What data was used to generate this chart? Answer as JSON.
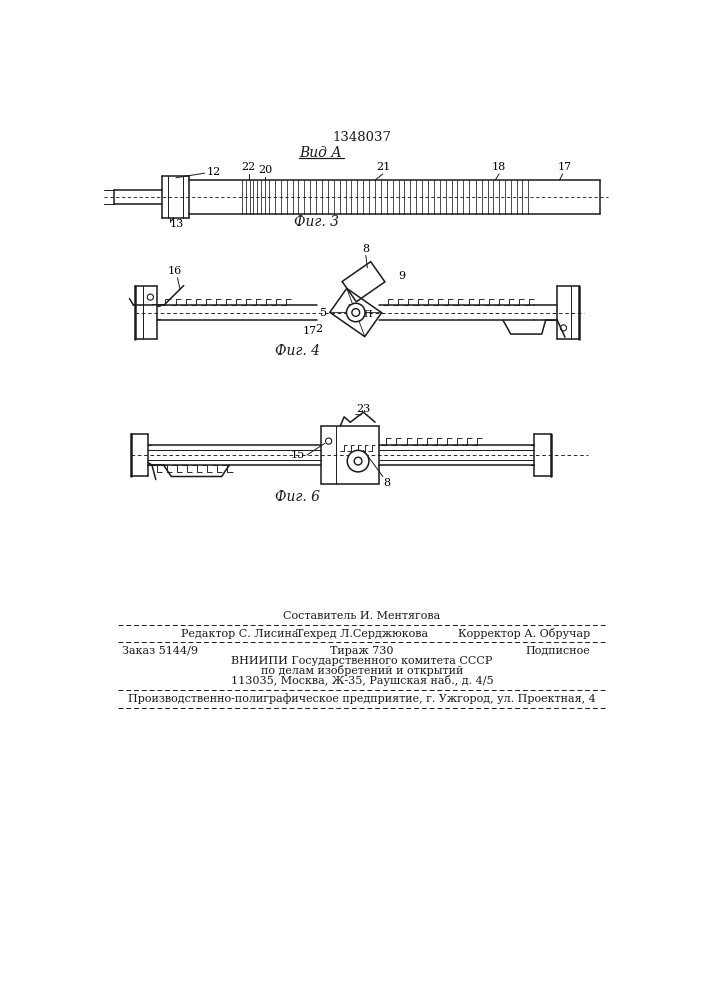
{
  "title_patent": "1348037",
  "view_label": "Вид А",
  "fig3_label": "Фиг. 3",
  "fig4_label": "Фиг. 4",
  "fig6_label": "Фиг. 6",
  "bg_color": "#ffffff",
  "line_color": "#1a1a1a",
  "footer_sestavitel": "Составитель И. Ментягова",
  "footer_redaktor": "Редактор С. Лисина",
  "footer_tehred": "Техред Л.Серджюкова",
  "footer_korrektor": "Корректор А. Обручар",
  "footer_zakaz": "Заказ 5144/9",
  "footer_tirazh": "Тираж 730",
  "footer_podpisnoe": "Подписное",
  "footer_vnipi": "ВНИИПИ Государственного комитета СССР",
  "footer_dela": "по делам изобретений и открытий",
  "footer_addr": "113035, Москва, Ж-35, Раушская наб., д. 4/5",
  "footer_prod": "Производственно-полиграфическое предприятие, г. Ужгород, ул. Проектная, 4"
}
